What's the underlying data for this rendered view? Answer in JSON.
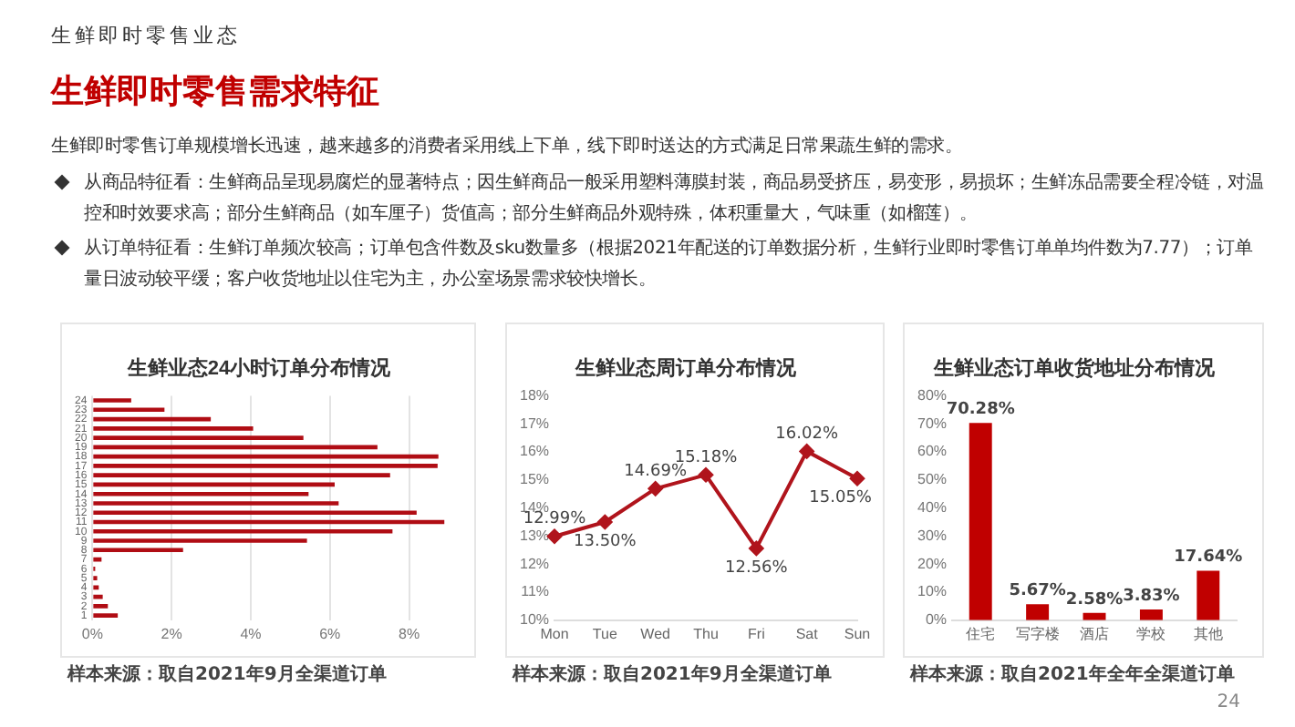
{
  "chart_data": [
    {
      "type": "other",
      "subtitle": "生鲜即时零售业态",
      "title": "生鲜即时零售需求特征",
      "annotations": [
        "生鲜即时零售订单规模增长迅速，越来越多的消费者采用线上下单，线下即时送达的方式满足日常果蔬生鲜的需求。",
        "从商品特征看：生鲜商品呈现易腐烂的显著特点；因生鲜商品一般采用塑料薄膜封装，商品易受挤压，易变形，易损坏；生鲜冻品需要全程冷链，对温控和时效要求高；部分生鲜商品（如车厘子）货值高；部分生鲜商品外观特殊，体积重量大，气味重（如榴莲）。",
        "从订单特征看：生鲜订单频次较高；订单包含件数及sku数量多（根据2021年配送的订单数据分析，生鲜行业即时零售订单单均件数为7.77）；订单量日波动较平缓；客户收货地址以住宅为主，办公室场景需求较快增长。",
        "24"
      ]
    },
    {
      "type": "bar",
      "orientation": "horizontal",
      "title": "生鲜业态24小时订单分布情况",
      "categories": [
        "24",
        "23",
        "22",
        "21",
        "20",
        "19",
        "18",
        "17",
        "16",
        "15",
        "14",
        "13",
        "12",
        "11",
        "10",
        "9",
        "8",
        "7",
        "6",
        "5",
        "4",
        "3",
        "2",
        "1"
      ],
      "values": [
        0.98,
        1.82,
        2.99,
        4.06,
        5.33,
        7.2,
        8.74,
        8.72,
        7.52,
        6.12,
        5.46,
        6.22,
        8.19,
        8.89,
        7.58,
        5.42,
        2.29,
        0.23,
        0.07,
        0.12,
        0.16,
        0.26,
        0.39,
        0.64
      ],
      "color": "#b00d14",
      "xlim": [
        0,
        9
      ],
      "xticks": [
        {
          "value": 0,
          "label": "0%"
        },
        {
          "value": 2,
          "label": "2%"
        },
        {
          "value": 4,
          "label": "4%"
        },
        {
          "value": 6,
          "label": "6%"
        },
        {
          "value": 8,
          "label": "8%"
        }
      ],
      "grid": "x",
      "legend": false,
      "annotations": [
        "样本来源：取自2021年9月全渠道订单"
      ]
    },
    {
      "type": "line",
      "title": "生鲜业态周订单分布情况",
      "categories": [
        "Mon",
        "Tue",
        "Wed",
        "Thu",
        "Fri",
        "Sat",
        "Sun"
      ],
      "values": [
        12.99,
        13.5,
        14.69,
        15.18,
        12.56,
        16.02,
        15.05
      ],
      "value_labels": [
        "12.99%",
        "13.50%",
        "14.69%",
        "15.18%",
        "12.56%",
        "16.02%",
        "15.05%"
      ],
      "color": "#b0141c",
      "marker": "diamond",
      "line_style": "solid",
      "ylim": [
        10,
        18
      ],
      "yticks": [
        {
          "value": 10,
          "label": "10%"
        },
        {
          "value": 11,
          "label": "11%"
        },
        {
          "value": 12,
          "label": "12%"
        },
        {
          "value": 13,
          "label": "13%"
        },
        {
          "value": 14,
          "label": "14%"
        },
        {
          "value": 15,
          "label": "15%"
        },
        {
          "value": 16,
          "label": "16%"
        },
        {
          "value": 17,
          "label": "17%"
        },
        {
          "value": 18,
          "label": "18%"
        }
      ],
      "grid": false,
      "legend": false,
      "annotations": [
        "样本来源：取自2021年9月全渠道订单"
      ]
    },
    {
      "type": "bar",
      "title": "生鲜业态订单收货地址分布情况",
      "categories": [
        "住宅",
        "写字楼",
        "酒店",
        "学校",
        "其他"
      ],
      "values": [
        70.28,
        5.67,
        2.58,
        3.83,
        17.64
      ],
      "value_labels": [
        "70.28%",
        "5.67%",
        "2.58%",
        "3.83%",
        "17.64%"
      ],
      "color": "#c00000",
      "ylim": [
        0,
        80
      ],
      "yticks": [
        {
          "value": 0,
          "label": "0%"
        },
        {
          "value": 10,
          "label": "10%"
        },
        {
          "value": 20,
          "label": "20%"
        },
        {
          "value": 30,
          "label": "30%"
        },
        {
          "value": 40,
          "label": "40%"
        },
        {
          "value": 50,
          "label": "50%"
        },
        {
          "value": 60,
          "label": "60%"
        },
        {
          "value": 70,
          "label": "70%"
        },
        {
          "value": 80,
          "label": "80%"
        }
      ],
      "grid": false,
      "legend": false,
      "annotations": [
        "样本来源：取自2021年全年全渠道订单"
      ]
    }
  ]
}
